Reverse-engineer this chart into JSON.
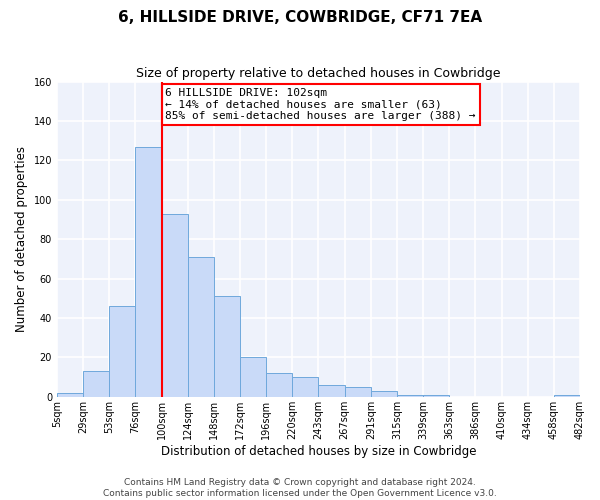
{
  "title": "6, HILLSIDE DRIVE, COWBRIDGE, CF71 7EA",
  "subtitle": "Size of property relative to detached houses in Cowbridge",
  "xlabel": "Distribution of detached houses by size in Cowbridge",
  "ylabel": "Number of detached properties",
  "bin_labels": [
    "5sqm",
    "29sqm",
    "53sqm",
    "76sqm",
    "100sqm",
    "124sqm",
    "148sqm",
    "172sqm",
    "196sqm",
    "220sqm",
    "243sqm",
    "267sqm",
    "291sqm",
    "315sqm",
    "339sqm",
    "363sqm",
    "386sqm",
    "410sqm",
    "434sqm",
    "458sqm",
    "482sqm"
  ],
  "bar_heights": [
    2,
    13,
    46,
    127,
    93,
    71,
    51,
    20,
    12,
    10,
    6,
    5,
    3,
    1,
    1,
    0,
    0,
    0,
    0,
    1
  ],
  "bar_color": "#c9daf8",
  "bar_edge_color": "#6fa8dc",
  "reference_line_x": 4,
  "annotation_text": "6 HILLSIDE DRIVE: 102sqm\n← 14% of detached houses are smaller (63)\n85% of semi-detached houses are larger (388) →",
  "annotation_box_color": "white",
  "annotation_box_edge_color": "red",
  "ylim": [
    0,
    160
  ],
  "yticks": [
    0,
    20,
    40,
    60,
    80,
    100,
    120,
    140,
    160
  ],
  "footer_line1": "Contains HM Land Registry data © Crown copyright and database right 2024.",
  "footer_line2": "Contains public sector information licensed under the Open Government Licence v3.0.",
  "bg_color": "#eef2fb",
  "grid_color": "white",
  "title_fontsize": 11,
  "subtitle_fontsize": 9,
  "axis_label_fontsize": 8.5,
  "tick_fontsize": 7,
  "annotation_fontsize": 8,
  "footer_fontsize": 6.5
}
